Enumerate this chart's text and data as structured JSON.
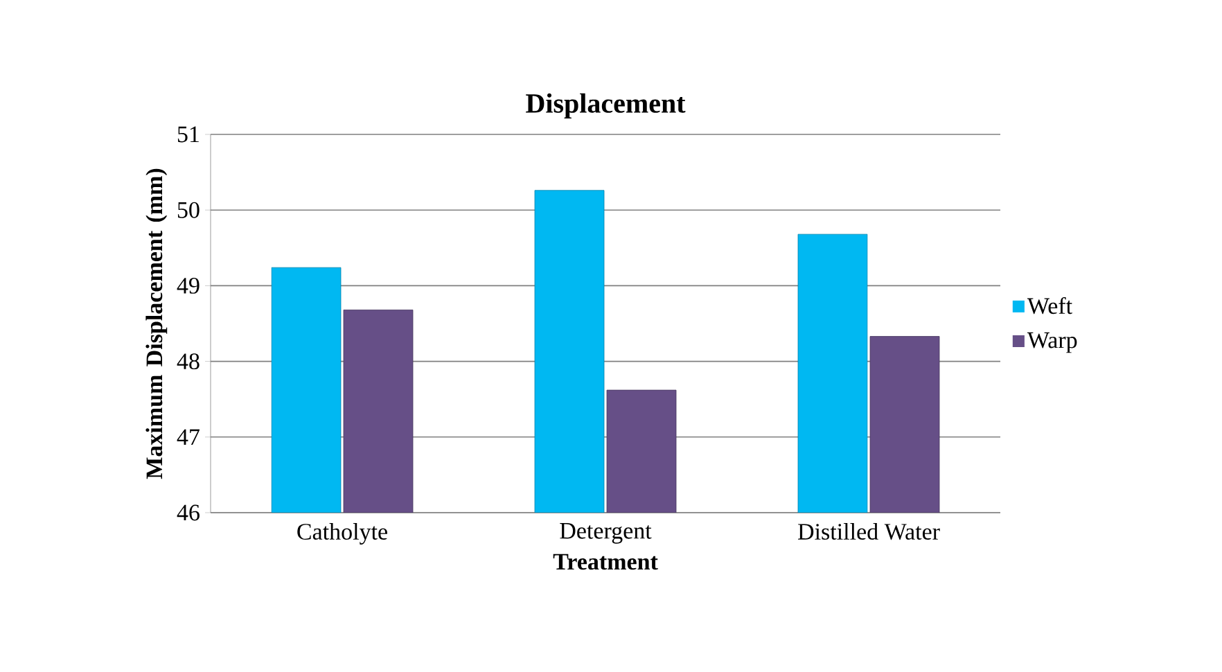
{
  "chart_data": {
    "type": "bar",
    "title": "Displacement",
    "xlabel": "Treatment",
    "ylabel": "Maximum Displacement (mm)",
    "categories": [
      "Catholyte",
      "Detergent",
      "Distilled Water"
    ],
    "series": [
      {
        "name": "Weft",
        "color": "#00b8f2",
        "values": [
          49.24,
          50.26,
          49.68
        ]
      },
      {
        "name": "Warp",
        "color": "#664f87",
        "values": [
          48.68,
          47.62,
          48.33
        ]
      }
    ],
    "ylim": [
      46,
      51
    ],
    "yticks": [
      46,
      47,
      48,
      49,
      50,
      51
    ],
    "grid": "y",
    "legend": "right"
  }
}
